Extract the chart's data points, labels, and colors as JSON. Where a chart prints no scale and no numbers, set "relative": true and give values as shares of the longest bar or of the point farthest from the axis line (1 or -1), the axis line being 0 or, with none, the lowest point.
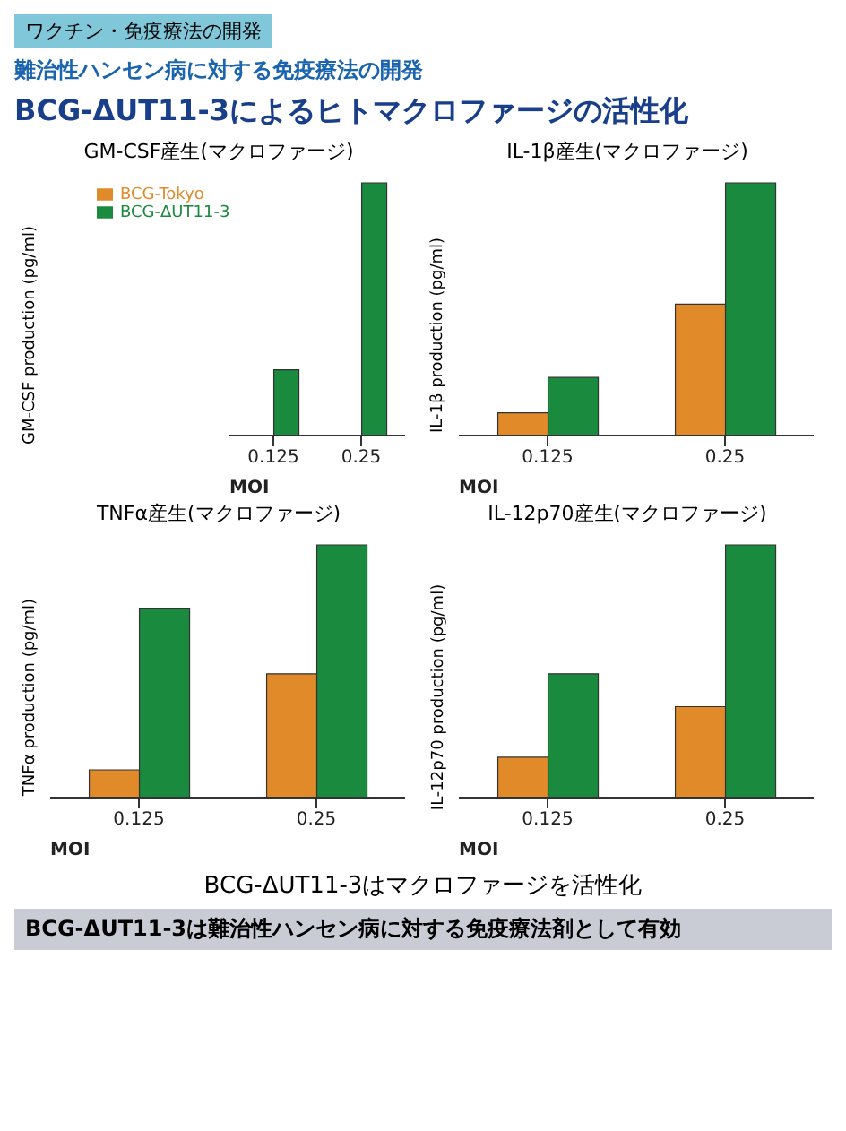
{
  "chart_data": [
    {
      "type": "bar",
      "title": "GM-CSF産生(マクロファージ)",
      "ylabel": "GM-CSF production (pg/ml)",
      "xlabel": "MOI",
      "relative": true,
      "legend": "top left",
      "annotations": [
        "ワクチン・免疫療法の開発",
        "難治性ハンセン病に対する免疫療法の開発",
        "BCG-ΔUT11-3によるヒトマクロファージの活性化"
      ],
      "categories": [
        "0.125",
        "0.25"
      ],
      "series": [
        {
          "name": "BCG-Tokyo",
          "color": "#e08a2a",
          "values": [
            0,
            0
          ]
        },
        {
          "name": "BCG-ΔUT11-3",
          "color": "#1a8a3e",
          "values": [
            0.26,
            1
          ]
        }
      ]
    },
    {
      "type": "bar",
      "title": "IL-1β産生(マクロファージ)",
      "ylabel": "IL-1β production (pg/ml)",
      "xlabel": "MOI",
      "relative": true,
      "categories": [
        "0.125",
        "0.25"
      ],
      "series": [
        {
          "color": "#e08a2a",
          "values": [
            0.09,
            0.52
          ]
        },
        {
          "color": "#1a8a3e",
          "values": [
            0.23,
            1
          ]
        }
      ]
    },
    {
      "type": "bar",
      "title": "TNFα産生(マクロファージ)",
      "ylabel": "TNFα production (pg/ml)",
      "xlabel": "MOI",
      "relative": true,
      "categories": [
        "0.125",
        "0.25"
      ],
      "series": [
        {
          "color": "#e08a2a",
          "values": [
            0.11,
            0.49
          ]
        },
        {
          "color": "#1a8a3e",
          "values": [
            0.75,
            1
          ]
        }
      ]
    },
    {
      "type": "bar",
      "title": "IL-12p70産生(マクロファージ)",
      "ylabel": "IL-12p70 production (pg/ml)",
      "xlabel": "MOI",
      "relative": true,
      "annotations": [
        "BCG-ΔUT11-3はマクロファージを活性化",
        "BCG-ΔUT11-3は難治性ハンセン病に対する免疫療法剤として有効"
      ],
      "categories": [
        "0.125",
        "0.25"
      ],
      "series": [
        {
          "color": "#e08a2a",
          "values": [
            0.16,
            0.36
          ]
        },
        {
          "color": "#1a8a3e",
          "values": [
            0.49,
            1
          ]
        }
      ]
    }
  ]
}
